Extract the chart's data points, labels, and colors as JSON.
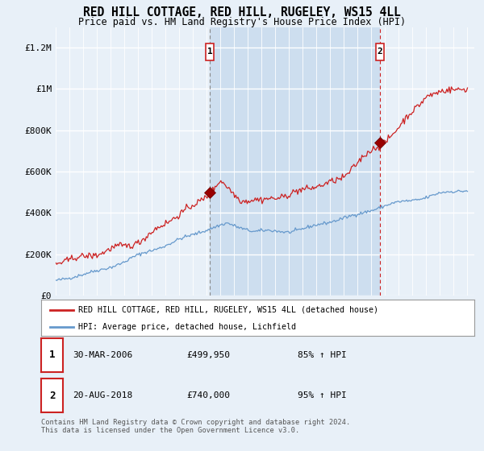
{
  "title": "RED HILL COTTAGE, RED HILL, RUGELEY, WS15 4LL",
  "subtitle": "Price paid vs. HM Land Registry's House Price Index (HPI)",
  "background_color": "#e8f0f8",
  "plot_bg_color": "#e8f0f8",
  "highlight_color": "#ccdcee",
  "ylim": [
    0,
    1300000
  ],
  "yticks": [
    0,
    200000,
    400000,
    600000,
    800000,
    1000000,
    1200000
  ],
  "ytick_labels": [
    "£0",
    "£200K",
    "£400K",
    "£600K",
    "£800K",
    "£1M",
    "£1.2M"
  ],
  "x_start_year": 1995,
  "x_end_year": 2025,
  "red_line_color": "#cc2222",
  "blue_line_color": "#6699cc",
  "sale1_year": 2006.23,
  "sale1_price": 499950,
  "sale1_label": "1",
  "sale1_date": "30-MAR-2006",
  "sale1_hpi": "85%",
  "sale2_year": 2018.63,
  "sale2_price": 740000,
  "sale2_label": "2",
  "sale2_date": "20-AUG-2018",
  "sale2_hpi": "95%",
  "legend_red_label": "RED HILL COTTAGE, RED HILL, RUGELEY, WS15 4LL (detached house)",
  "legend_blue_label": "HPI: Average price, detached house, Lichfield",
  "footer": "Contains HM Land Registry data © Crown copyright and database right 2024.\nThis data is licensed under the Open Government Licence v3.0."
}
